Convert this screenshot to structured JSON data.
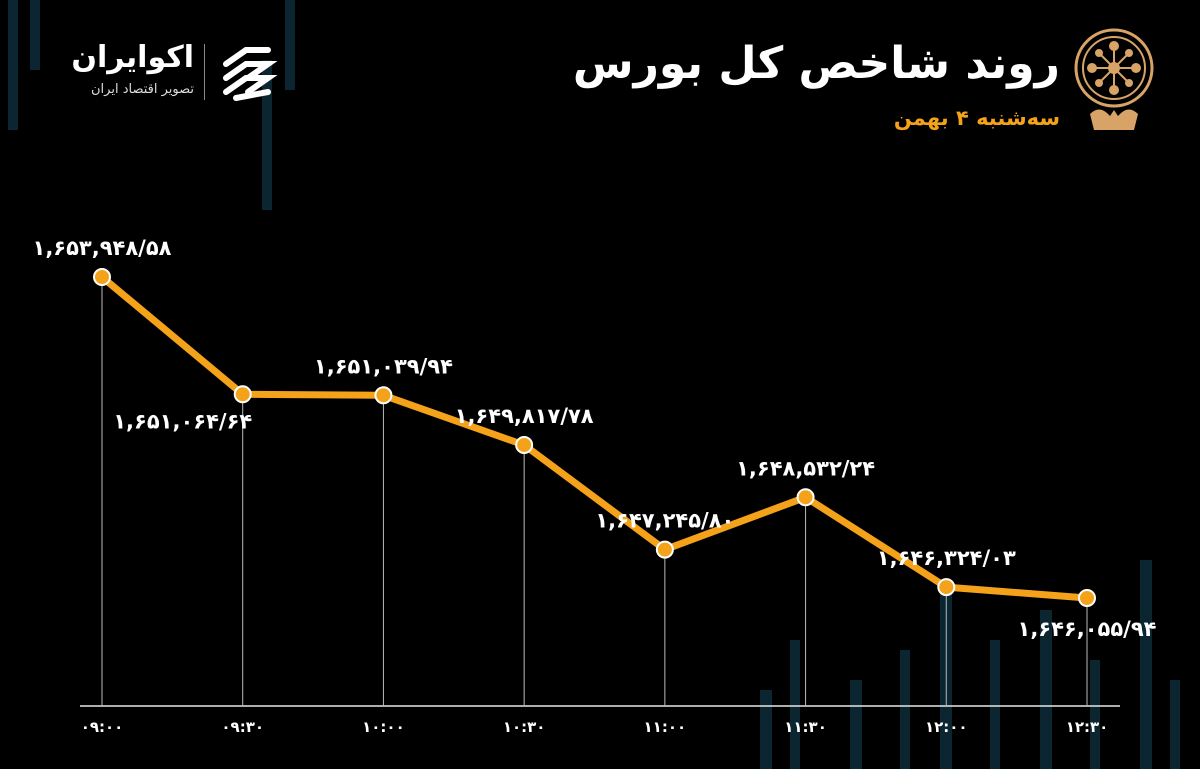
{
  "header": {
    "title": "روند شاخص کل بورس",
    "subtitle": "سه‌شنبه ۴ بهمن"
  },
  "brand": {
    "name": "اکوایران",
    "tagline": "تصویر اقتصاد ایران"
  },
  "colors": {
    "accent": "#f5a21b",
    "background": "#000000",
    "line": "#f5a21b",
    "text": "#ffffff",
    "bg_bars": "#0b2630"
  },
  "icons": {
    "brand_logo": "ecoiran-logo-icon",
    "emblem": "tehran-stock-exchange-emblem-icon"
  },
  "chart_data": {
    "type": "line",
    "categories": [
      "09:00",
      "09:30",
      "10:00",
      "10:30",
      "11:00",
      "11:30",
      "12:00",
      "12:30"
    ],
    "category_labels": [
      "۰۹:۰۰",
      "۰۹:۳۰",
      "۱۰:۰۰",
      "۱۰:۳۰",
      "۱۱:۰۰",
      "۱۱:۳۰",
      "۱۲:۰۰",
      "۱۲:۳۰"
    ],
    "values": [
      1653948.58,
      1651064.64,
      1651039.94,
      1649817.78,
      1647245.8,
      1648532.24,
      1646324.03,
      1646055.94
    ],
    "value_labels": [
      "۱,۶۵۳,۹۴۸/۵۸",
      "۱,۶۵۱,۰۶۴/۶۴",
      "۱,۶۵۱,۰۳۹/۹۴",
      "۱,۶۴۹,۸۱۷/۷۸",
      "۱,۶۴۷,۲۴۵/۸۰",
      "۱,۶۴۸,۵۳۲/۲۴",
      "۱,۶۴۶,۳۲۴/۰۳",
      "۱,۶۴۶,۰۵۵/۹۴"
    ],
    "title": "روند شاخص کل بورس",
    "xlabel": "",
    "ylabel": "",
    "grid": false,
    "legend": "none"
  }
}
